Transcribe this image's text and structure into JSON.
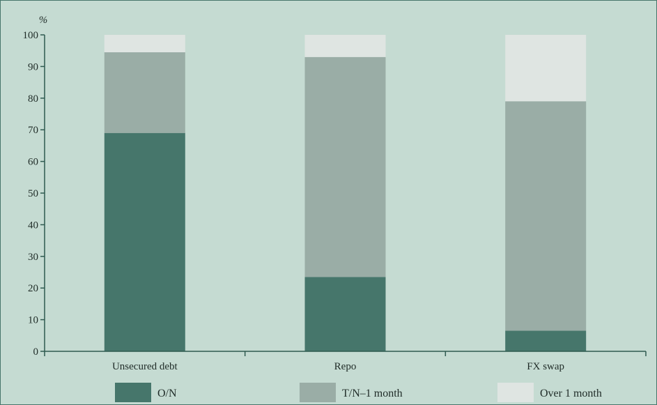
{
  "chart_data": {
    "type": "bar",
    "stacked": true,
    "unit_label": "%",
    "categories": [
      "Unsecured debt",
      "Repo",
      "FX swap"
    ],
    "series": [
      {
        "name": "O/N",
        "color": "#46766b",
        "values": [
          69,
          23.5,
          6.5
        ]
      },
      {
        "name": "T/N–1 month",
        "color": "#9aada6",
        "values": [
          25.5,
          69.5,
          72.5
        ]
      },
      {
        "name": "Over 1 month",
        "color": "#dfe5e2",
        "values": [
          5.5,
          7,
          21
        ]
      }
    ],
    "ylim": [
      0,
      100
    ],
    "yticks": [
      0,
      10,
      20,
      30,
      40,
      50,
      60,
      70,
      80,
      90,
      100
    ],
    "grid": false,
    "legend_position": "bottom",
    "colors": {
      "background": "#c5dbd2",
      "axis": "#2f5a50",
      "frame": "#46766b"
    }
  }
}
